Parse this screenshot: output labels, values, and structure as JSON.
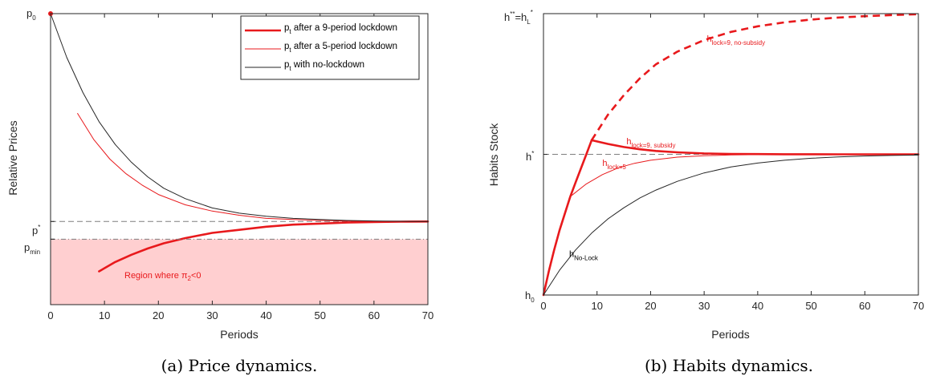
{
  "colors": {
    "red": "#e8191c",
    "black": "#262626",
    "region": "#ffcfd0",
    "grid": "#7f7f7f"
  },
  "chart_data": [
    {
      "type": "line",
      "caption": "(a) Price dynamics.",
      "xlabel": "Periods",
      "ylabel": "Relative Prices",
      "xlim": [
        0,
        70
      ],
      "xticks": [
        0,
        10,
        20,
        30,
        40,
        50,
        60,
        70
      ],
      "ylim": [
        0.72,
        1.0
      ],
      "y_ticklabels": {
        "p0": {
          "base": "p",
          "sub": "0",
          "value": 1.0
        },
        "pstar": {
          "base": "p",
          "sup": "*",
          "value": 0.8
        },
        "pmin": {
          "base": "p",
          "sub": "min",
          "value": 0.783
        }
      },
      "region": {
        "label_pre": "Region where ",
        "label_pi": "π",
        "label_sub": "2",
        "label_post": "<0",
        "y_from": 0.72,
        "y_to": 0.783
      },
      "dashed_lines": [
        0.8
      ],
      "legend": {
        "placement": "top-right",
        "entries": [
          {
            "base": "p",
            "sub": "t",
            "text": " after a 9-period lockdown"
          },
          {
            "base": "p",
            "sub": "t",
            "text": " after a 5-period lockdown"
          },
          {
            "base": "p",
            "sub": "t",
            "text": " with no-lockdown"
          }
        ]
      },
      "series": [
        {
          "style": "thick-red",
          "x": [
            9,
            12,
            15,
            18,
            21,
            25,
            30,
            35,
            40,
            45,
            50,
            55,
            60,
            65,
            70
          ],
          "y": [
            0.752,
            0.761,
            0.768,
            0.774,
            0.779,
            0.784,
            0.789,
            0.792,
            0.795,
            0.797,
            0.798,
            0.799,
            0.7995,
            0.7998,
            0.8
          ]
        },
        {
          "style": "thin-red",
          "x": [
            5,
            8,
            11,
            14,
            17,
            20,
            25,
            30,
            35,
            40,
            45,
            50,
            55,
            60,
            65,
            70
          ],
          "y": [
            0.904,
            0.879,
            0.86,
            0.846,
            0.835,
            0.826,
            0.816,
            0.81,
            0.806,
            0.803,
            0.802,
            0.801,
            0.8005,
            0.8002,
            0.8001,
            0.8
          ]
        },
        {
          "style": "thin-black",
          "x": [
            0,
            3,
            6,
            9,
            12,
            15,
            18,
            21,
            25,
            30,
            35,
            40,
            45,
            50,
            55,
            60,
            65,
            70
          ],
          "y": [
            1.0,
            0.958,
            0.924,
            0.896,
            0.874,
            0.857,
            0.843,
            0.832,
            0.822,
            0.813,
            0.808,
            0.805,
            0.803,
            0.802,
            0.801,
            0.8005,
            0.8002,
            0.8
          ]
        }
      ],
      "markers": [
        {
          "x": 0,
          "y": 1.0,
          "color": "#e8191c"
        }
      ]
    },
    {
      "type": "line",
      "caption": "(b) Habits dynamics.",
      "xlabel": "Periods",
      "ylabel": "Habits Stock",
      "xlim": [
        0,
        70
      ],
      "xticks": [
        0,
        10,
        20,
        30,
        40,
        50,
        60,
        70
      ],
      "ylim": [
        0.0,
        1.0
      ],
      "y_ticklabels": {
        "h0": {
          "base": "h",
          "sub": "0",
          "value": 0.0
        },
        "hstar": {
          "base": "h",
          "sup": "*",
          "value": 0.5
        },
        "hss": {
          "base": "h",
          "sup": "**",
          "mid": "=h",
          "sub2": "L",
          "sup2": "*",
          "value": 1.0
        }
      },
      "dashed_lines": [
        0.5,
        1.0
      ],
      "annotations": [
        {
          "base": "h",
          "sub": "lock=9, no-subsidy",
          "x": 30.5,
          "y": 0.9,
          "color": "red"
        },
        {
          "base": "h",
          "sub": "lock=9, subsidy",
          "x": 15.5,
          "y": 0.535,
          "color": "red"
        },
        {
          "base": "h",
          "sub": "lock=5",
          "x": 11,
          "y": 0.458,
          "color": "red"
        },
        {
          "base": "h",
          "sub": "No-Lock",
          "x": 4.8,
          "y": 0.135,
          "color": "black"
        }
      ],
      "series": [
        {
          "style": "thick-red-dashed",
          "x": [
            9,
            12,
            15,
            18,
            21,
            25,
            30,
            35,
            40,
            45,
            50,
            55,
            60,
            65,
            70
          ],
          "y": [
            0.55,
            0.64,
            0.71,
            0.77,
            0.82,
            0.865,
            0.906,
            0.935,
            0.955,
            0.969,
            0.979,
            0.986,
            0.991,
            0.995,
            0.998
          ]
        },
        {
          "style": "thick-red",
          "x": [
            0,
            1,
            2,
            3,
            4,
            5,
            6,
            7,
            8,
            9
          ],
          "y": [
            0.0,
            0.085,
            0.16,
            0.23,
            0.29,
            0.35,
            0.4,
            0.45,
            0.5,
            0.55
          ]
        },
        {
          "style": "thick-red",
          "x": [
            9,
            12,
            15,
            18,
            21,
            25,
            30,
            35,
            40,
            45,
            50,
            55,
            60,
            65,
            70
          ],
          "y": [
            0.55,
            0.537,
            0.526,
            0.518,
            0.512,
            0.507,
            0.503,
            0.5015,
            0.5008,
            0.5004,
            0.5002,
            0.5001,
            0.5,
            0.5,
            0.5
          ]
        },
        {
          "style": "thin-red",
          "x": [
            5,
            8,
            11,
            14,
            17,
            20,
            25,
            30,
            35,
            40,
            45,
            50,
            55,
            60,
            65,
            70
          ],
          "y": [
            0.35,
            0.395,
            0.428,
            0.452,
            0.468,
            0.479,
            0.49,
            0.495,
            0.4977,
            0.499,
            0.4995,
            0.4998,
            0.4999,
            0.5,
            0.5,
            0.5
          ]
        },
        {
          "style": "thin-black",
          "x": [
            0,
            3,
            6,
            9,
            12,
            15,
            18,
            21,
            25,
            30,
            35,
            40,
            45,
            50,
            55,
            60,
            65,
            70
          ],
          "y": [
            0.0,
            0.088,
            0.16,
            0.22,
            0.27,
            0.31,
            0.345,
            0.373,
            0.404,
            0.434,
            0.455,
            0.469,
            0.479,
            0.486,
            0.491,
            0.494,
            0.496,
            0.4975
          ]
        }
      ]
    }
  ]
}
